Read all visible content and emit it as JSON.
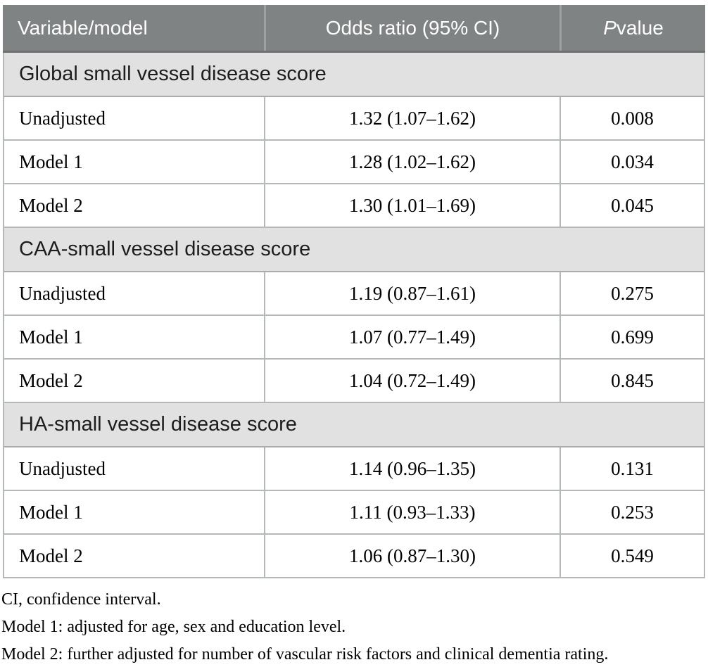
{
  "table": {
    "header": {
      "col1": "Variable/model",
      "col2": "Odds ratio (95% CI)",
      "col3_italic": "P",
      "col3_rest": " value"
    },
    "sections": [
      {
        "title": "Global small vessel disease score",
        "rows": [
          {
            "label": "Unadjusted",
            "or_ci": "1.32 (1.07–1.62)",
            "p": "0.008"
          },
          {
            "label": "Model 1",
            "or_ci": "1.28 (1.02–1.62)",
            "p": "0.034"
          },
          {
            "label": "Model 2",
            "or_ci": "1.30 (1.01–1.69)",
            "p": "0.045"
          }
        ]
      },
      {
        "title": "CAA-small vessel disease score",
        "rows": [
          {
            "label": "Unadjusted",
            "or_ci": "1.19 (0.87–1.61)",
            "p": "0.275"
          },
          {
            "label": "Model 1",
            "or_ci": "1.07 (0.77–1.49)",
            "p": "0.699"
          },
          {
            "label": "Model 2",
            "or_ci": "1.04 (0.72–1.49)",
            "p": "0.845"
          }
        ]
      },
      {
        "title": "HA-small vessel disease score",
        "rows": [
          {
            "label": "Unadjusted",
            "or_ci": "1.14 (0.96–1.35)",
            "p": "0.131"
          },
          {
            "label": "Model 1",
            "or_ci": "1.11 (0.93–1.33)",
            "p": "0.253"
          },
          {
            "label": "Model 2",
            "or_ci": "1.06 (0.87–1.30)",
            "p": "0.549"
          }
        ]
      }
    ]
  },
  "footnotes": [
    "CI, confidence interval.",
    "Model 1: adjusted for age, sex and education level.",
    "Model 2: further adjusted for number of vascular risk factors and clinical dementia rating."
  ],
  "colors": {
    "header_bg": "#808383",
    "header_text": "#ffffff",
    "header_rule": "#6e7070",
    "section_bg": "#e1e1e2",
    "grid_line": "#b5b8b8",
    "body_text": "#000000"
  }
}
